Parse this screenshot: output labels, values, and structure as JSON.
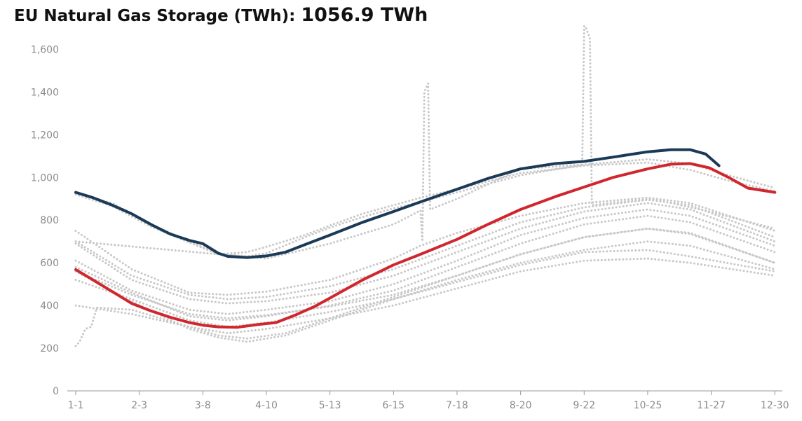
{
  "header": {
    "title": "EU Natural Gas Storage (TWh):",
    "current_value": "1056.9 TWh"
  },
  "chart_data": {
    "type": "line",
    "title": "EU Natural Gas Storage (TWh): 1056.9 TWh",
    "xlabel": "",
    "ylabel": "",
    "x_axis": {
      "unit": "day of year",
      "range": [
        1,
        365
      ],
      "tick_labels": [
        "1-1",
        "2-3",
        "3-8",
        "4-10",
        "5-13",
        "6-15",
        "7-18",
        "8-20",
        "9-22",
        "10-25",
        "11-27",
        "12-30"
      ],
      "tick_days": [
        1,
        34,
        67,
        100,
        133,
        166,
        199,
        232,
        265,
        298,
        331,
        364
      ]
    },
    "y_axis": {
      "range": [
        0,
        1700
      ],
      "ticks": [
        0,
        200,
        400,
        600,
        800,
        1000,
        1200,
        1400,
        1600
      ],
      "tick_labels": [
        "0",
        "200",
        "400",
        "600",
        "800",
        "1,000",
        "1,200",
        "1,400",
        "1,600"
      ]
    },
    "grid": false,
    "legend": "none",
    "colors": {
      "highlight_dark": "#1b3a57",
      "highlight_red": "#d0262d",
      "historical": "#c8c8c8",
      "axis_text": "#8c8c8c"
    },
    "series": [
      {
        "style": "solid",
        "color": "#1b3a57",
        "x": [
          1,
          10,
          20,
          30,
          40,
          50,
          60,
          67,
          75,
          80,
          90,
          100,
          110,
          120,
          133,
          150,
          166,
          180,
          199,
          215,
          232,
          250,
          265,
          280,
          298,
          310,
          320,
          328,
          335
        ],
        "y": [
          930,
          905,
          870,
          830,
          780,
          735,
          705,
          690,
          645,
          630,
          625,
          632,
          650,
          685,
          730,
          790,
          840,
          885,
          945,
          995,
          1040,
          1065,
          1075,
          1095,
          1120,
          1130,
          1130,
          1110,
          1055
        ]
      },
      {
        "style": "solid",
        "color": "#d0262d",
        "x": [
          1,
          10,
          20,
          30,
          40,
          50,
          60,
          67,
          75,
          85,
          95,
          105,
          115,
          125,
          133,
          150,
          166,
          180,
          199,
          215,
          232,
          250,
          265,
          280,
          298,
          310,
          320,
          330,
          340,
          350,
          364
        ],
        "y": [
          568,
          520,
          465,
          410,
          375,
          345,
          320,
          308,
          300,
          298,
          310,
          320,
          355,
          395,
          435,
          520,
          590,
          640,
          710,
          780,
          850,
          910,
          955,
          1000,
          1040,
          1062,
          1065,
          1045,
          1000,
          950,
          930
        ]
      },
      {
        "style": "dotted",
        "color": "#c8c8c8",
        "x": [
          1,
          20,
          40,
          60,
          75,
          90,
          100,
          120,
          133,
          150,
          166,
          180,
          199,
          232,
          265,
          298,
          320,
          340,
          364
        ],
        "y": [
          925,
          880,
          780,
          700,
          645,
          630,
          645,
          720,
          765,
          815,
          855,
          885,
          930,
          1010,
          1060,
          1085,
          1065,
          1010,
          950
        ]
      },
      {
        "style": "dotted",
        "color": "#c8c8c8",
        "x": [
          1,
          20,
          40,
          60,
          75,
          90,
          100,
          120,
          133,
          150,
          166,
          180,
          199,
          232,
          265,
          298,
          320,
          340,
          364
        ],
        "y": [
          920,
          865,
          770,
          695,
          640,
          650,
          675,
          730,
          775,
          830,
          870,
          905,
          945,
          1020,
          1055,
          1070,
          1035,
          985,
          935
        ]
      },
      {
        "style": "dotted",
        "color": "#c8c8c8",
        "x": [
          1,
          30,
          60,
          80,
          100,
          133,
          166,
          180,
          199,
          232,
          265,
          298,
          320,
          364
        ],
        "y": [
          750,
          570,
          460,
          450,
          465,
          520,
          620,
          680,
          740,
          820,
          880,
          905,
          880,
          750
        ]
      },
      {
        "style": "dotted",
        "color": "#c8c8c8",
        "x": [
          1,
          30,
          60,
          80,
          100,
          133,
          166,
          199,
          232,
          265,
          298,
          320,
          364
        ],
        "y": [
          700,
          540,
          450,
          430,
          440,
          490,
          570,
          680,
          790,
          860,
          895,
          870,
          720
        ]
      },
      {
        "style": "dotted",
        "color": "#c8c8c8",
        "x": [
          1,
          30,
          60,
          80,
          100,
          133,
          166,
          199,
          232,
          265,
          298,
          320,
          364
        ],
        "y": [
          690,
          520,
          430,
          410,
          420,
          460,
          540,
          650,
          760,
          840,
          880,
          850,
          700
        ]
      },
      {
        "style": "dotted",
        "color": "#c8c8c8",
        "x": [
          1,
          30,
          60,
          80,
          100,
          133,
          166,
          199,
          232,
          265,
          298,
          320,
          364
        ],
        "y": [
          610,
          470,
          380,
          360,
          380,
          420,
          500,
          610,
          730,
          810,
          850,
          820,
          680
        ]
      },
      {
        "style": "dotted",
        "color": "#c8c8c8",
        "x": [
          1,
          30,
          60,
          80,
          100,
          133,
          166,
          199,
          232,
          265,
          298,
          320,
          364
        ],
        "y": [
          580,
          460,
          350,
          330,
          350,
          400,
          470,
          580,
          690,
          780,
          820,
          790,
          650
        ]
      },
      {
        "style": "dotted",
        "color": "#c8c8c8",
        "x": [
          1,
          30,
          60,
          80,
          100,
          133,
          166,
          199,
          232,
          265,
          298,
          320,
          364
        ],
        "y": [
          560,
          450,
          360,
          340,
          355,
          395,
          450,
          540,
          640,
          720,
          760,
          735,
          600
        ]
      },
      {
        "style": "dotted",
        "color": "#c8c8c8",
        "x": [
          1,
          30,
          60,
          80,
          100,
          133,
          166,
          199,
          232,
          265,
          298,
          320,
          364
        ],
        "y": [
          520,
          430,
          330,
          300,
          320,
          370,
          430,
          510,
          590,
          650,
          660,
          630,
          560
        ]
      },
      {
        "style": "dotted",
        "color": "#c8c8c8",
        "x": [
          1,
          30,
          60,
          80,
          100,
          133,
          166,
          199,
          232,
          265,
          298,
          320,
          364
        ],
        "y": [
          400,
          360,
          300,
          270,
          290,
          340,
          400,
          480,
          560,
          610,
          620,
          600,
          540
        ]
      },
      {
        "style": "dotted",
        "color": "#c8c8c8",
        "x": [
          1,
          30,
          60,
          75,
          90,
          110,
          133,
          166,
          199,
          232,
          265,
          298,
          320,
          364
        ],
        "y": [
          560,
          420,
          290,
          250,
          230,
          260,
          330,
          430,
          520,
          600,
          660,
          700,
          680,
          570
        ]
      },
      {
        "style": "dotted",
        "color": "#c8c8c8",
        "x": [
          1,
          3,
          6,
          9,
          12,
          30,
          60,
          75,
          90,
          110,
          133,
          166,
          199,
          232,
          265,
          298,
          320,
          364
        ],
        "y": [
          210,
          230,
          290,
          300,
          390,
          380,
          300,
          260,
          245,
          270,
          340,
          440,
          540,
          640,
          720,
          760,
          740,
          600
        ]
      },
      {
        "style": "dotted",
        "color": "#c8c8c8",
        "x": [
          1,
          100,
          133,
          166,
          180,
          181,
          182,
          184,
          185,
          199,
          232,
          264,
          265,
          266,
          268,
          269,
          300,
          330,
          364
        ],
        "y": [
          700,
          620,
          690,
          780,
          845,
          700,
          1400,
          1440,
          850,
          900,
          1040,
          1060,
          1710,
          1700,
          1650,
          870,
          900,
          840,
          760
        ]
      }
    ]
  }
}
